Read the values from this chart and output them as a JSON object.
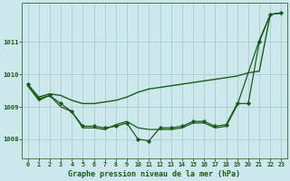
{
  "background_color": "#cce8ec",
  "grid_color": "#aacdd4",
  "line_color": "#1a5c1a",
  "title": "Graphe pression niveau de la mer (hPa)",
  "xlim": [
    -0.5,
    23.5
  ],
  "ylim": [
    1007.4,
    1012.2
  ],
  "yticks": [
    1008,
    1009,
    1010,
    1011
  ],
  "xticks": [
    0,
    1,
    2,
    3,
    4,
    5,
    6,
    7,
    8,
    9,
    10,
    11,
    12,
    13,
    14,
    15,
    16,
    17,
    18,
    19,
    20,
    21,
    22,
    23
  ],
  "series": [
    {
      "x": [
        0,
        1,
        2,
        3,
        4,
        5,
        6,
        7,
        8,
        9,
        10,
        11,
        12,
        13,
        14,
        15,
        16,
        17,
        18,
        19,
        20,
        21,
        22,
        23
      ],
      "y": [
        1009.7,
        1009.3,
        1009.4,
        1009.35,
        1009.2,
        1009.1,
        1009.1,
        1009.15,
        1009.2,
        1009.3,
        1009.45,
        1009.55,
        1009.6,
        1009.65,
        1009.7,
        1009.75,
        1009.8,
        1009.85,
        1009.9,
        1009.95,
        1010.05,
        1010.1,
        1011.85,
        1011.9
      ],
      "marker": null,
      "lw": 1.0
    },
    {
      "x": [
        0,
        1,
        2,
        3,
        4,
        5,
        6,
        7,
        8,
        9,
        10,
        11,
        12,
        13,
        14,
        15,
        16,
        17,
        18,
        19,
        20,
        21,
        22,
        23
      ],
      "y": [
        1009.7,
        1009.25,
        1009.35,
        1009.1,
        1008.85,
        1008.4,
        1008.4,
        1008.35,
        1008.4,
        1008.5,
        1008.0,
        1007.95,
        1008.35,
        1008.35,
        1008.4,
        1008.55,
        1008.55,
        1008.4,
        1008.45,
        1009.1,
        1009.1,
        1011.0,
        1011.85,
        1011.9
      ],
      "marker": "D",
      "markersize": 2.2,
      "lw": 0.9
    },
    {
      "x": [
        0,
        1,
        2,
        3,
        4,
        5,
        6,
        7,
        8,
        9,
        10,
        11,
        12,
        13,
        14,
        15,
        16,
        17,
        18,
        19,
        20,
        21,
        22,
        23
      ],
      "y": [
        1009.65,
        1009.2,
        1009.35,
        1009.0,
        1008.85,
        1008.35,
        1008.35,
        1008.3,
        1008.45,
        1008.55,
        1008.35,
        1008.3,
        1008.3,
        1008.3,
        1008.35,
        1008.5,
        1008.5,
        1008.35,
        1008.4,
        1009.05,
        1010.05,
        1011.05,
        1011.85,
        1011.9
      ],
      "marker": null,
      "lw": 0.9
    }
  ]
}
